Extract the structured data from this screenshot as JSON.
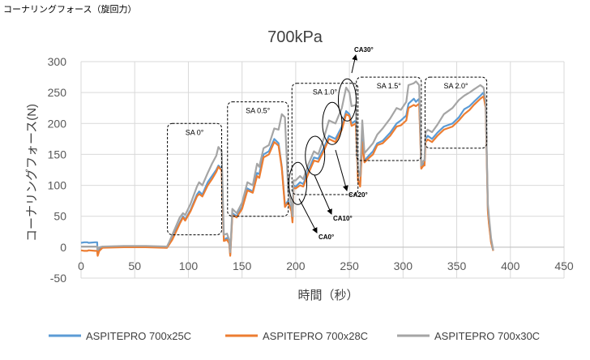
{
  "page_heading": "コーナリングフォース（旋回力）",
  "chart_data": {
    "type": "line",
    "title": "700kPa",
    "xlabel": "時間（秒）",
    "ylabel": "コーナリングフォース(N)",
    "xlim": [
      0,
      450
    ],
    "ylim": [
      -50,
      300
    ],
    "xticks": [
      0,
      50,
      100,
      150,
      200,
      250,
      300,
      350,
      400,
      450
    ],
    "yticks": [
      -50,
      0,
      50,
      100,
      150,
      200,
      250,
      300
    ],
    "grid": true,
    "legend_position": "bottom",
    "series": [
      {
        "name": "ASPITEPRO 700x25C",
        "color": "#5b9bd5",
        "x": [
          0,
          3,
          6,
          7,
          13,
          15,
          15.5,
          17,
          20,
          40,
          60,
          80,
          82,
          85,
          92,
          95,
          97,
          102,
          108,
          110,
          113,
          118,
          122,
          126,
          128,
          131,
          133,
          136,
          138,
          139,
          141,
          145,
          150,
          155,
          160,
          164,
          166,
          170,
          175,
          180,
          184,
          187,
          190,
          193,
          196,
          197,
          198,
          200,
          204,
          207,
          212,
          217,
          221,
          226,
          231,
          237,
          243,
          247,
          250,
          252,
          256,
          258,
          260,
          262,
          264,
          268,
          272,
          276,
          281,
          288,
          294,
          298,
          303,
          305,
          310,
          312,
          315,
          317,
          319,
          320,
          321,
          323,
          327,
          332,
          338,
          346,
          352,
          357,
          362,
          366,
          372,
          375,
          377,
          379,
          380,
          382,
          384
        ],
        "y": [
          7,
          8,
          8,
          7,
          8,
          8,
          -12,
          -3,
          0,
          1,
          1,
          0,
          5,
          15,
          40,
          50,
          45,
          60,
          85,
          90,
          85,
          105,
          115,
          125,
          132,
          127,
          12,
          15,
          8,
          -12,
          55,
          50,
          65,
          95,
          90,
          120,
          118,
          150,
          155,
          175,
          168,
          130,
          68,
          75,
          60,
          42,
          100,
          98,
          105,
          102,
          125,
          145,
          143,
          160,
          180,
          175,
          195,
          220,
          215,
          200,
          205,
          110,
          100,
          175,
          140,
          148,
          155,
          168,
          172,
          185,
          200,
          205,
          213,
          232,
          240,
          235,
          240,
          130,
          135,
          135,
          175,
          180,
          175,
          185,
          195,
          200,
          210,
          223,
          228,
          235,
          245,
          250,
          230,
          60,
          40,
          10,
          -5
        ]
      },
      {
        "name": "ASPITEPRO 700x28C",
        "color": "#ed7d31",
        "x": [
          0,
          3,
          6,
          7,
          13,
          15,
          15.5,
          17,
          20,
          40,
          60,
          80,
          82,
          85,
          92,
          95,
          97,
          102,
          108,
          110,
          113,
          118,
          122,
          126,
          128,
          131,
          133,
          136,
          138,
          139,
          141,
          145,
          150,
          155,
          160,
          164,
          166,
          170,
          175,
          180,
          184,
          187,
          190,
          193,
          196,
          197,
          198,
          200,
          204,
          207,
          212,
          217,
          221,
          226,
          231,
          237,
          243,
          247,
          250,
          252,
          256,
          258,
          260,
          262,
          264,
          268,
          272,
          276,
          281,
          288,
          294,
          298,
          303,
          305,
          310,
          312,
          315,
          317,
          319,
          320,
          321,
          323,
          327,
          332,
          338,
          346,
          352,
          357,
          362,
          366,
          372,
          375,
          377,
          379,
          380,
          382,
          384
        ],
        "y": [
          -5,
          -6,
          -6,
          -5,
          -6,
          -6,
          -14,
          -6,
          -1,
          0,
          0,
          -1,
          4,
          12,
          38,
          48,
          43,
          58,
          82,
          86,
          82,
          100,
          110,
          122,
          130,
          124,
          10,
          12,
          6,
          -14,
          52,
          48,
          62,
          92,
          88,
          115,
          112,
          145,
          150,
          170,
          164,
          128,
          65,
          72,
          58,
          40,
          96,
          95,
          100,
          98,
          120,
          140,
          138,
          155,
          175,
          170,
          190,
          215,
          212,
          196,
          200,
          108,
          98,
          170,
          137,
          144,
          150,
          165,
          168,
          180,
          195,
          197,
          205,
          225,
          230,
          228,
          232,
          127,
          132,
          132,
          170,
          174,
          170,
          180,
          190,
          195,
          205,
          215,
          222,
          230,
          240,
          244,
          225,
          58,
          38,
          8,
          -6
        ]
      },
      {
        "name": "ASPITEPRO 700x30C",
        "color": "#a5a5a5",
        "x": [
          0,
          3,
          6,
          7,
          13,
          15,
          15.5,
          17,
          20,
          40,
          60,
          80,
          82,
          85,
          92,
          95,
          97,
          102,
          108,
          110,
          113,
          118,
          122,
          126,
          128,
          131,
          133,
          136,
          138,
          139,
          141,
          145,
          150,
          155,
          160,
          164,
          166,
          170,
          175,
          180,
          184,
          187,
          190,
          193,
          196,
          197,
          198,
          200,
          204,
          207,
          212,
          217,
          221,
          226,
          231,
          237,
          243,
          247,
          250,
          252,
          256,
          258,
          260,
          262,
          264,
          268,
          272,
          276,
          281,
          288,
          294,
          298,
          303,
          305,
          310,
          312,
          315,
          317,
          319,
          320,
          321,
          323,
          327,
          332,
          338,
          346,
          352,
          357,
          362,
          366,
          372,
          375,
          377,
          379,
          380,
          382,
          384
        ],
        "y": [
          1,
          1,
          1,
          1,
          1,
          1,
          -4,
          0,
          1,
          2,
          2,
          1,
          8,
          20,
          48,
          55,
          52,
          70,
          98,
          105,
          100,
          120,
          135,
          148,
          162,
          155,
          20,
          22,
          12,
          -8,
          62,
          55,
          72,
          105,
          100,
          135,
          130,
          160,
          165,
          192,
          190,
          215,
          210,
          90,
          70,
          50,
          108,
          108,
          115,
          110,
          135,
          155,
          150,
          175,
          205,
          200,
          225,
          258,
          250,
          228,
          230,
          125,
          115,
          205,
          152,
          160,
          168,
          182,
          192,
          208,
          225,
          222,
          235,
          262,
          265,
          268,
          262,
          132,
          140,
          140,
          185,
          190,
          186,
          198,
          215,
          225,
          238,
          245,
          250,
          255,
          262,
          258,
          235,
          70,
          50,
          15,
          -5
        ]
      }
    ],
    "annotations": {
      "sweep_labels": [
        "SA 0°",
        "SA 0.5°",
        "SA 1.0°",
        "SA 1.5°",
        "SA 2.0°"
      ],
      "sweep_ranges": [
        [
          82,
          128
        ],
        [
          138,
          190
        ],
        [
          198,
          255
        ],
        [
          258,
          314
        ],
        [
          322,
          375
        ]
      ],
      "camber_labels": [
        "CA0°",
        "CA10°",
        "CA20°",
        "CA30°"
      ],
      "camber_targets": [
        [
          202,
          103
        ],
        [
          218,
          148
        ],
        [
          234,
          200
        ],
        [
          248,
          238
        ]
      ]
    }
  }
}
